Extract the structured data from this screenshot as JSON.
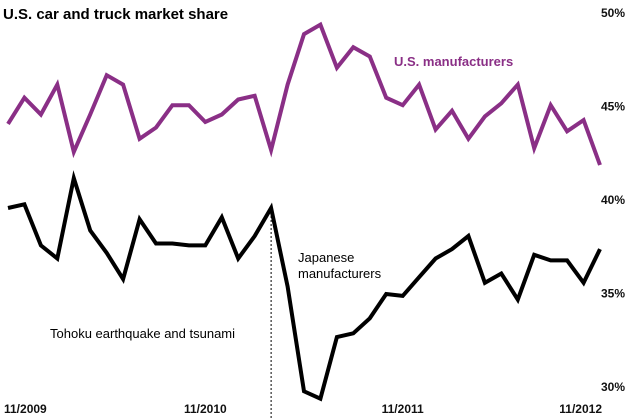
{
  "chart_data": {
    "type": "line",
    "title": "U.S. car and truck market share",
    "xlabel": "",
    "ylabel": "",
    "ylim": [
      30,
      50
    ],
    "y_axis_position": "right",
    "y_ticks": [
      50,
      45,
      40,
      35,
      30
    ],
    "y_tick_labels": [
      "50%",
      "45%",
      "40%",
      "35%",
      "30%"
    ],
    "x_ticks": [
      "11/2009",
      "11/2010",
      "11/2011",
      "11/2012"
    ],
    "x": [
      "11/2009",
      "12/2009",
      "1/2010",
      "2/2010",
      "3/2010",
      "4/2010",
      "5/2010",
      "6/2010",
      "7/2010",
      "8/2010",
      "9/2010",
      "10/2010",
      "11/2010",
      "12/2010",
      "1/2011",
      "2/2011",
      "3/2011",
      "4/2011",
      "5/2011",
      "6/2011",
      "7/2011",
      "8/2011",
      "9/2011",
      "10/2011",
      "11/2011",
      "12/2011",
      "1/2012",
      "2/2012",
      "3/2012",
      "4/2012",
      "5/2012",
      "6/2012",
      "7/2012",
      "8/2012",
      "9/2012",
      "10/2012",
      "11/2012"
    ],
    "series": [
      {
        "name": "U.S. manufacturers",
        "color": "#8a2f86",
        "values": [
          44.5,
          45.9,
          45.0,
          46.6,
          43.0,
          45.0,
          47.1,
          46.6,
          43.7,
          44.3,
          45.5,
          45.5,
          44.6,
          45.0,
          45.8,
          46.0,
          43.1,
          46.6,
          49.3,
          49.8,
          47.5,
          48.6,
          48.1,
          45.9,
          45.5,
          46.6,
          44.2,
          45.2,
          43.7,
          44.9,
          45.6,
          46.6,
          43.2,
          45.5,
          44.1,
          44.7,
          42.3
        ]
      },
      {
        "name": "Japanese manufacturers",
        "color": "#000000",
        "values": [
          40.0,
          40.2,
          38.0,
          37.3,
          41.6,
          38.8,
          37.6,
          36.2,
          39.4,
          38.1,
          38.1,
          38.0,
          38.0,
          39.5,
          37.3,
          38.5,
          40.0,
          35.8,
          30.2,
          29.8,
          33.1,
          33.3,
          34.1,
          35.4,
          35.3,
          36.3,
          37.3,
          37.8,
          38.5,
          36.0,
          36.5,
          35.1,
          37.5,
          37.2,
          37.2,
          36.0,
          37.8
        ]
      }
    ],
    "annotations": [
      {
        "text": "Tohoku earthquake and tsunami",
        "at_x": "3/2011"
      }
    ],
    "grid": false,
    "legend": "inline labels"
  }
}
